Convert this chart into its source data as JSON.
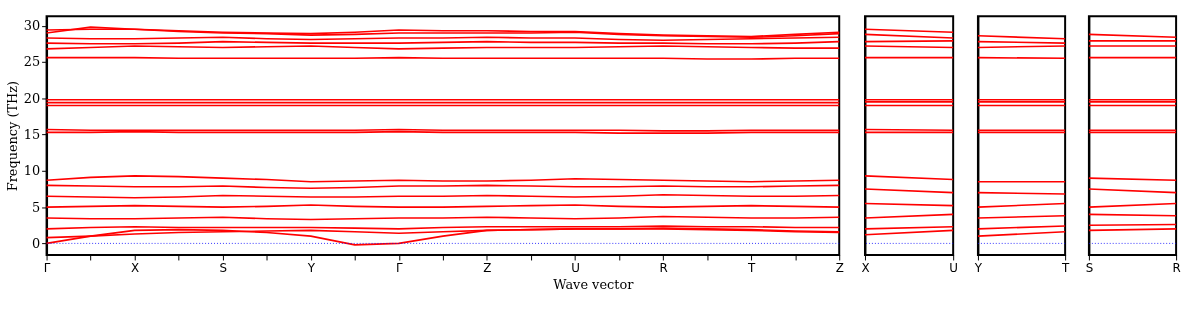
{
  "chart_data": [
    {
      "type": "line",
      "ylabel": "Frequency (THz)",
      "xlabel": "Wave vector",
      "categories": [
        "Γ",
        null,
        "X",
        null,
        "S",
        null,
        "Y",
        null,
        "Γ",
        null,
        "Z",
        null,
        "U",
        null,
        "R",
        null,
        "T",
        null,
        "Z"
      ],
      "ylim": [
        -1.6,
        31.3
      ],
      "yticks": [
        0,
        5,
        10,
        15,
        20,
        25,
        30
      ],
      "ref_lines": [
        {
          "axis": "y",
          "value": 0,
          "color": "#0000ff",
          "line_style": "dotted"
        }
      ],
      "series": [
        {
          "color": "#ff0000",
          "values": [
            0,
            1.0,
            1.8,
            1.9,
            1.8,
            1.5,
            1.0,
            -0.2,
            0,
            1.0,
            1.8,
            1.9,
            2.0,
            2.0,
            2.0,
            1.9,
            1.8,
            1.6,
            1.5
          ]
        },
        {
          "color": "#ff0000",
          "values": [
            0.8,
            1.0,
            1.3,
            1.5,
            1.6,
            1.7,
            1.8,
            1.6,
            1.4,
            1.6,
            1.8,
            1.9,
            2.0,
            2.0,
            2.1,
            2.0,
            1.9,
            1.7,
            1.6
          ]
        },
        {
          "color": "#ff0000",
          "values": [
            2.0,
            2.2,
            2.3,
            2.2,
            2.2,
            2.2,
            2.2,
            2.1,
            2.0,
            2.2,
            2.3,
            2.3,
            2.3,
            2.3,
            2.4,
            2.3,
            2.3,
            2.2,
            2.2
          ]
        },
        {
          "color": "#ff0000",
          "values": [
            3.5,
            3.4,
            3.4,
            3.5,
            3.6,
            3.4,
            3.3,
            3.4,
            3.5,
            3.5,
            3.6,
            3.5,
            3.4,
            3.5,
            3.7,
            3.6,
            3.5,
            3.5,
            3.6
          ]
        },
        {
          "color": "#ff0000",
          "values": [
            5.0,
            5.1,
            5.2,
            5.1,
            5.0,
            5.1,
            5.3,
            5.1,
            5.0,
            5.0,
            5.1,
            5.2,
            5.3,
            5.1,
            5.0,
            5.1,
            5.2,
            5.1,
            5.0
          ]
        },
        {
          "color": "#ff0000",
          "values": [
            6.5,
            6.4,
            6.3,
            6.4,
            6.6,
            6.5,
            6.4,
            6.4,
            6.5,
            6.5,
            6.6,
            6.5,
            6.4,
            6.5,
            6.7,
            6.6,
            6.5,
            6.5,
            6.6
          ]
        },
        {
          "color": "#ff0000",
          "values": [
            8.0,
            7.9,
            7.8,
            7.8,
            7.9,
            7.7,
            7.6,
            7.7,
            7.9,
            7.9,
            8.0,
            7.9,
            7.8,
            7.8,
            7.9,
            7.8,
            7.8,
            7.9,
            8.0
          ]
        },
        {
          "color": "#ff0000",
          "values": [
            8.7,
            9.1,
            9.3,
            9.2,
            9.0,
            8.8,
            8.5,
            8.6,
            8.7,
            8.6,
            8.6,
            8.7,
            8.9,
            8.8,
            8.7,
            8.6,
            8.5,
            8.6,
            8.7
          ]
        },
        {
          "color": "#ff0000",
          "values": [
            15.3,
            15.3,
            15.4,
            15.3,
            15.3,
            15.3,
            15.3,
            15.3,
            15.4,
            15.3,
            15.3,
            15.3,
            15.3,
            15.2,
            15.2,
            15.2,
            15.3,
            15.3,
            15.3
          ]
        },
        {
          "color": "#ff0000",
          "values": [
            15.7,
            15.6,
            15.6,
            15.6,
            15.6,
            15.6,
            15.6,
            15.6,
            15.7,
            15.6,
            15.6,
            15.6,
            15.6,
            15.6,
            15.5,
            15.5,
            15.6,
            15.6,
            15.6
          ]
        },
        {
          "color": "#ff0000",
          "values": [
            19.0,
            19.0,
            19.0,
            19.0,
            19.0,
            19.0,
            19.0,
            19.0,
            19.0,
            19.0,
            19.0,
            19.0,
            19.0,
            19.0,
            19.0,
            19.0,
            19.0,
            19.0,
            19.0
          ]
        },
        {
          "color": "#ff0000",
          "values": [
            19.4,
            19.4,
            19.4,
            19.4,
            19.4,
            19.4,
            19.4,
            19.4,
            19.4,
            19.4,
            19.4,
            19.4,
            19.4,
            19.4,
            19.4,
            19.4,
            19.4,
            19.4,
            19.4
          ]
        },
        {
          "color": "#ff0000",
          "values": [
            19.8,
            19.8,
            19.8,
            19.8,
            19.8,
            19.8,
            19.8,
            19.8,
            19.8,
            19.8,
            19.8,
            19.8,
            19.8,
            19.8,
            19.8,
            19.8,
            19.8,
            19.8,
            19.8
          ]
        },
        {
          "color": "#ff0000",
          "values": [
            25.6,
            25.6,
            25.6,
            25.5,
            25.5,
            25.5,
            25.5,
            25.5,
            25.6,
            25.5,
            25.5,
            25.5,
            25.5,
            25.5,
            25.5,
            25.4,
            25.4,
            25.5,
            25.5
          ]
        },
        {
          "color": "#ff0000",
          "values": [
            26.8,
            27.0,
            27.2,
            27.1,
            27.0,
            27.1,
            27.2,
            27.0,
            26.8,
            26.9,
            27.0,
            27.0,
            27.0,
            27.1,
            27.2,
            27.1,
            27.0,
            26.9,
            26.9
          ]
        },
        {
          "color": "#ff0000",
          "values": [
            27.6,
            27.5,
            27.5,
            27.6,
            27.8,
            27.7,
            27.6,
            27.6,
            27.6,
            27.7,
            27.8,
            27.7,
            27.7,
            27.6,
            27.6,
            27.5,
            27.5,
            27.6,
            27.8
          ]
        },
        {
          "color": "#ff0000",
          "values": [
            28.3,
            28.2,
            28.2,
            28.3,
            28.4,
            28.2,
            28.1,
            28.2,
            28.3,
            28.3,
            28.4,
            28.3,
            28.3,
            28.1,
            28.0,
            28.1,
            28.2,
            28.3,
            28.4
          ]
        },
        {
          "color": "#ff0000",
          "values": [
            29.0,
            29.8,
            29.5,
            29.2,
            29.0,
            28.9,
            28.7,
            28.8,
            29.0,
            29.0,
            29.0,
            29.0,
            29.1,
            28.8,
            28.6,
            28.5,
            28.4,
            28.6,
            28.9
          ]
        },
        {
          "color": "#ff0000",
          "values": [
            29.4,
            29.5,
            29.5,
            29.3,
            29.1,
            29.0,
            28.9,
            29.1,
            29.4,
            29.3,
            29.3,
            29.2,
            29.2,
            28.9,
            28.7,
            28.6,
            28.5,
            28.8,
            29.1
          ]
        }
      ]
    },
    {
      "type": "line",
      "categories": [
        "X",
        "U"
      ],
      "ylim": [
        -1.6,
        31.3
      ],
      "yticks": [
        0,
        5,
        10,
        15,
        20,
        25,
        30
      ],
      "tick_labels": "x",
      "ref_lines": [
        {
          "axis": "y",
          "value": 0,
          "color": "#0000ff",
          "line_style": "dotted"
        }
      ],
      "series": [
        {
          "color": "#ff0000",
          "values": [
            1.2,
            1.8
          ]
        },
        {
          "color": "#ff0000",
          "values": [
            2.0,
            2.3
          ]
        },
        {
          "color": "#ff0000",
          "values": [
            3.5,
            4.0
          ]
        },
        {
          "color": "#ff0000",
          "values": [
            5.5,
            5.2
          ]
        },
        {
          "color": "#ff0000",
          "values": [
            7.5,
            7.0
          ]
        },
        {
          "color": "#ff0000",
          "values": [
            9.3,
            8.8
          ]
        },
        {
          "color": "#ff0000",
          "values": [
            15.3,
            15.3
          ]
        },
        {
          "color": "#ff0000",
          "values": [
            15.7,
            15.6
          ]
        },
        {
          "color": "#ff0000",
          "values": [
            19.0,
            19.0
          ]
        },
        {
          "color": "#ff0000",
          "values": [
            19.5,
            19.5
          ]
        },
        {
          "color": "#ff0000",
          "values": [
            19.8,
            19.8
          ]
        },
        {
          "color": "#ff0000",
          "values": [
            25.6,
            25.6
          ]
        },
        {
          "color": "#ff0000",
          "values": [
            27.2,
            27.0
          ]
        },
        {
          "color": "#ff0000",
          "values": [
            27.8,
            27.9
          ]
        },
        {
          "color": "#ff0000",
          "values": [
            28.8,
            28.3
          ]
        },
        {
          "color": "#ff0000",
          "values": [
            29.5,
            29.1
          ]
        }
      ]
    },
    {
      "type": "line",
      "categories": [
        "Y",
        "T"
      ],
      "ylim": [
        -1.6,
        31.3
      ],
      "yticks": [
        0,
        5,
        10,
        15,
        20,
        25,
        30
      ],
      "tick_labels": "x",
      "ref_lines": [
        {
          "axis": "y",
          "value": 0,
          "color": "#0000ff",
          "line_style": "dotted"
        }
      ],
      "series": [
        {
          "color": "#ff0000",
          "values": [
            1.0,
            1.6
          ]
        },
        {
          "color": "#ff0000",
          "values": [
            2.0,
            2.4
          ]
        },
        {
          "color": "#ff0000",
          "values": [
            3.5,
            3.8
          ]
        },
        {
          "color": "#ff0000",
          "values": [
            5.0,
            5.5
          ]
        },
        {
          "color": "#ff0000",
          "values": [
            7.0,
            6.8
          ]
        },
        {
          "color": "#ff0000",
          "values": [
            8.5,
            8.5
          ]
        },
        {
          "color": "#ff0000",
          "values": [
            15.3,
            15.3
          ]
        },
        {
          "color": "#ff0000",
          "values": [
            15.6,
            15.6
          ]
        },
        {
          "color": "#ff0000",
          "values": [
            19.0,
            19.0
          ]
        },
        {
          "color": "#ff0000",
          "values": [
            19.5,
            19.5
          ]
        },
        {
          "color": "#ff0000",
          "values": [
            19.8,
            19.8
          ]
        },
        {
          "color": "#ff0000",
          "values": [
            25.6,
            25.5
          ]
        },
        {
          "color": "#ff0000",
          "values": [
            27.0,
            27.2
          ]
        },
        {
          "color": "#ff0000",
          "values": [
            27.8,
            27.6
          ]
        },
        {
          "color": "#ff0000",
          "values": [
            28.6,
            28.2
          ]
        }
      ]
    },
    {
      "type": "line",
      "categories": [
        "S",
        "R"
      ],
      "ylim": [
        -1.6,
        31.3
      ],
      "yticks": [
        0,
        5,
        10,
        15,
        20,
        25,
        30
      ],
      "tick_labels": "x",
      "ref_lines": [
        {
          "axis": "y",
          "value": 0,
          "color": "#0000ff",
          "line_style": "dotted"
        }
      ],
      "series": [
        {
          "color": "#ff0000",
          "values": [
            1.8,
            2.0
          ]
        },
        {
          "color": "#ff0000",
          "values": [
            2.5,
            2.6
          ]
        },
        {
          "color": "#ff0000",
          "values": [
            4.0,
            3.8
          ]
        },
        {
          "color": "#ff0000",
          "values": [
            5.0,
            5.5
          ]
        },
        {
          "color": "#ff0000",
          "values": [
            7.5,
            7.0
          ]
        },
        {
          "color": "#ff0000",
          "values": [
            9.0,
            8.7
          ]
        },
        {
          "color": "#ff0000",
          "values": [
            15.3,
            15.3
          ]
        },
        {
          "color": "#ff0000",
          "values": [
            15.6,
            15.6
          ]
        },
        {
          "color": "#ff0000",
          "values": [
            19.0,
            19.0
          ]
        },
        {
          "color": "#ff0000",
          "values": [
            19.5,
            19.5
          ]
        },
        {
          "color": "#ff0000",
          "values": [
            19.8,
            19.8
          ]
        },
        {
          "color": "#ff0000",
          "values": [
            25.6,
            25.6
          ]
        },
        {
          "color": "#ff0000",
          "values": [
            27.2,
            27.2
          ]
        },
        {
          "color": "#ff0000",
          "values": [
            27.9,
            27.9
          ]
        },
        {
          "color": "#ff0000",
          "values": [
            28.8,
            28.4
          ]
        }
      ]
    }
  ]
}
